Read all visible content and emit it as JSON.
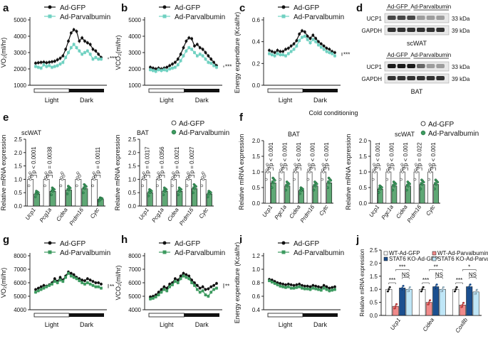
{
  "panel_labels": [
    "a",
    "b",
    "c",
    "d",
    "e",
    "f",
    "g",
    "h",
    "i",
    "j"
  ],
  "legend": {
    "gfp": "Ad-GFP",
    "parv": "Ad-Parvalbumin"
  },
  "light_dark": {
    "light": "Light",
    "dark": "Dark"
  },
  "cold_conditioning": "Cold conditioning",
  "colors": {
    "gfp": "#111111",
    "parv_light": "#6fd1c1",
    "parv_green": "#3c9a5f",
    "parv_green_fill": "#5fa875"
  },
  "western": {
    "top": {
      "tissue": "scWAT",
      "groups": [
        "Ad-GFP",
        "Ad-Parvalbumin"
      ],
      "bands": [
        "UCP1",
        "GAPDH"
      ],
      "kda": [
        "33 kDa",
        "39 kDa"
      ]
    },
    "bottom": {
      "tissue": "BAT",
      "groups": [
        "Ad-GFP",
        "Ad-Parvalbumin"
      ],
      "bands": [
        "UCP1",
        "GAPDH"
      ],
      "kda": [
        "33 kDa",
        "39 kDa"
      ]
    }
  },
  "chart_data": [
    {
      "id": "a",
      "type": "line",
      "ylabel": "VO₂(ml/hr)",
      "yticks": [
        "1000",
        "2000",
        "3000",
        "4000",
        "5000"
      ],
      "ylim": [
        1000,
        5000
      ],
      "significance": "***",
      "series": [
        {
          "name": "Ad-GFP",
          "values": [
            2350,
            2380,
            2400,
            2420,
            2380,
            2410,
            2440,
            2470,
            2560,
            2650,
            2800,
            3200,
            3700,
            4200,
            4400,
            4300,
            3700,
            3900,
            3700,
            3600,
            3500,
            3200,
            3100,
            2900,
            2700
          ]
        },
        {
          "name": "Ad-Parvalbumin",
          "values": [
            2150,
            2100,
            2050,
            2250,
            2150,
            2200,
            2100,
            2150,
            2200,
            2300,
            2400,
            2700,
            3000,
            3300,
            3500,
            3300,
            3100,
            2900,
            3000,
            3100,
            2900,
            2600,
            2700,
            2600,
            2600
          ]
        }
      ]
    },
    {
      "id": "b",
      "type": "line",
      "ylabel": "VCO₂(ml/hr)",
      "yticks": [
        "1000",
        "2000",
        "3000",
        "4000",
        "5000"
      ],
      "ylim": [
        1000,
        5000
      ],
      "significance": "***",
      "series": [
        {
          "name": "Ad-GFP",
          "values": [
            2100,
            2050,
            2000,
            2050,
            2000,
            2050,
            2100,
            2200,
            2300,
            2400,
            2600,
            2900,
            3300,
            3700,
            3900,
            3850,
            3400,
            3500,
            3300,
            3200,
            3000,
            2800,
            2600,
            2400,
            2200
          ]
        },
        {
          "name": "Ad-Parvalbumin",
          "values": [
            1950,
            1900,
            1850,
            1950,
            1900,
            1950,
            1900,
            2000,
            2050,
            2100,
            2250,
            2500,
            2800,
            3100,
            3300,
            3200,
            3000,
            2800,
            2900,
            2800,
            2600,
            2400,
            2350,
            2200,
            2100
          ]
        }
      ]
    },
    {
      "id": "c",
      "type": "line",
      "ylabel": "Energy expenditure (Kcal/hr)",
      "yticks": [
        "0.0",
        "0.2",
        "0.4",
        "0.6"
      ],
      "ylim": [
        0,
        0.6
      ],
      "significance": "***",
      "series": [
        {
          "name": "Ad-GFP",
          "values": [
            0.32,
            0.31,
            0.3,
            0.32,
            0.31,
            0.31,
            0.33,
            0.34,
            0.36,
            0.38,
            0.41,
            0.47,
            0.5,
            0.49,
            0.45,
            0.43,
            0.46,
            0.43,
            0.4,
            0.38,
            0.36,
            0.34,
            0.33,
            0.31,
            0.3
          ]
        },
        {
          "name": "Ad-Parvalbumin",
          "values": [
            0.29,
            0.28,
            0.27,
            0.29,
            0.28,
            0.28,
            0.27,
            0.29,
            0.31,
            0.33,
            0.36,
            0.41,
            0.44,
            0.45,
            0.42,
            0.39,
            0.42,
            0.4,
            0.37,
            0.35,
            0.33,
            0.31,
            0.3,
            0.29,
            0.27
          ]
        }
      ]
    },
    {
      "id": "e",
      "type": "bar",
      "ylabel": "Relative mRNA expression",
      "yticks": [
        "0.0",
        "0.5",
        "1.0",
        "1.5",
        "2.0",
        "2.5"
      ],
      "ylim": [
        0,
        2.5
      ],
      "panels": [
        {
          "title": "scWAT",
          "categories": [
            "Ucp1",
            "Pcg1a",
            "Cidea",
            "Prdm16",
            "Cytc"
          ],
          "series": [
            {
              "name": "Ad-GFP",
              "values": [
                1.0,
                1.0,
                1.0,
                1.0,
                1.0
              ]
            },
            {
              "name": "Ad-Parvalbumin",
              "values": [
                0.45,
                0.55,
                0.6,
                0.65,
                0.25
              ]
            }
          ],
          "pvalues": [
            {
              "cat": 0,
              "text": "p < 0.0001"
            },
            {
              "cat": 1,
              "text": "p = 0.0038"
            },
            {
              "cat": 4,
              "text": "p = 0.0011"
            }
          ]
        },
        {
          "title": "BAT",
          "categories": [
            "Ucp1",
            "Pcg1a",
            "Cidea",
            "Prdm16",
            "Cytc"
          ],
          "series": [
            {
              "name": "Ad-GFP",
              "values": [
                1.0,
                1.0,
                1.0,
                1.0,
                1.0
              ]
            },
            {
              "name": "Ad-Parvalbumin",
              "values": [
                0.5,
                0.55,
                0.55,
                0.65,
                0.45
              ]
            }
          ],
          "pvalues": [
            {
              "cat": 0,
              "text": "p = 0.0317"
            },
            {
              "cat": 1,
              "text": "p = 0.0356"
            },
            {
              "cat": 2,
              "text": "p = 0.0021"
            },
            {
              "cat": 3,
              "text": "p = 0.0027"
            }
          ]
        }
      ]
    },
    {
      "id": "f",
      "type": "bar",
      "ylabel": "Relative mRNA expression",
      "yticks": [
        "0.0",
        "0.5",
        "1.0",
        "1.5",
        "2.0"
      ],
      "ylim": [
        0,
        2.0
      ],
      "panels": [
        {
          "title": "BAT",
          "categories": [
            "Ucp1",
            "Pgc1a",
            "Cidea",
            "Prdm16",
            "Cytc"
          ],
          "series": [
            {
              "name": "Ad-GFP",
              "values": [
                1.0,
                1.0,
                1.0,
                1.0,
                1.0
              ]
            },
            {
              "name": "Ad-Parvalbumin",
              "values": [
                0.65,
                0.55,
                0.4,
                0.55,
                0.65
              ]
            }
          ],
          "pvalues": [
            {
              "cat": 0,
              "text": "p < 0.001"
            },
            {
              "cat": 1,
              "text": "p < 0.001"
            },
            {
              "cat": 2,
              "text": "p < 0.001"
            },
            {
              "cat": 3,
              "text": "p < 0.001"
            },
            {
              "cat": 4,
              "text": "p < 0.001"
            }
          ]
        },
        {
          "title": "scWAT",
          "categories": [
            "Ucp1",
            "Pgc1a",
            "Cidea",
            "Prdm16",
            "Cytc"
          ],
          "series": [
            {
              "name": "Ad-GFP",
              "values": [
                1.0,
                1.0,
                1.0,
                1.0,
                1.0
              ]
            },
            {
              "name": "Ad-Parvalbumin",
              "values": [
                0.45,
                0.55,
                0.55,
                0.6,
                0.6
              ]
            }
          ],
          "pvalues": [
            {
              "cat": 0,
              "text": "p < 0.001"
            },
            {
              "cat": 1,
              "text": "p < 0.001"
            },
            {
              "cat": 2,
              "text": "p < 0.001"
            },
            {
              "cat": 3,
              "text": "p = 0.022"
            },
            {
              "cat": 4,
              "text": "p < 0.001"
            }
          ]
        }
      ]
    },
    {
      "id": "g",
      "type": "line",
      "ylabel": "VO₂(ml/hr)",
      "yticks": [
        "4000",
        "5000",
        "6000",
        "7000",
        "8000"
      ],
      "ylim": [
        4000,
        8000
      ],
      "significance": "**",
      "series": [
        {
          "name": "Ad-GFP",
          "values": [
            5500,
            5600,
            5700,
            5800,
            5750,
            5850,
            6000,
            6300,
            6100,
            6400,
            6200,
            6500,
            6800,
            6700,
            6600,
            6400,
            6300,
            6200,
            6150,
            6300,
            6200,
            6100,
            6000,
            6000,
            5900
          ]
        },
        {
          "name": "Ad-Parvalbumin",
          "values": [
            5300,
            5400,
            5500,
            5600,
            5700,
            5800,
            5900,
            6100,
            6000,
            6200,
            6100,
            6400,
            6700,
            6500,
            6400,
            6300,
            6150,
            6000,
            5900,
            6000,
            5900,
            5800,
            5700,
            5700,
            5600
          ]
        }
      ]
    },
    {
      "id": "h",
      "type": "line",
      "ylabel": "VCO₂(ml/hr)",
      "yticks": [
        "4000",
        "5000",
        "6000",
        "7000",
        "8000"
      ],
      "ylim": [
        4000,
        8000
      ],
      "significance": "**",
      "series": [
        {
          "name": "Ad-GFP",
          "values": [
            4950,
            5000,
            5100,
            5300,
            5500,
            5700,
            5600,
            5900,
            6000,
            6300,
            6200,
            6500,
            6700,
            6600,
            6500,
            6200,
            6000,
            5800,
            5600,
            5700,
            5500,
            5550,
            5700,
            5800,
            5950
          ]
        },
        {
          "name": "Ad-Parvalbumin",
          "values": [
            4800,
            4850,
            4950,
            5100,
            5300,
            5500,
            5400,
            5700,
            5850,
            6100,
            6000,
            6300,
            6500,
            6400,
            6300,
            6000,
            5800,
            5500,
            5300,
            5400,
            5100,
            5000,
            5300,
            5500,
            5600
          ]
        }
      ]
    },
    {
      "id": "i",
      "type": "line",
      "ylabel": "Energy expenditure (Kcal/hr)",
      "yticks": [
        "0.4",
        "0.6",
        "0.8",
        "1.0",
        "1.2"
      ],
      "ylim": [
        0.4,
        1.2
      ],
      "series": [
        {
          "name": "Ad-GFP",
          "values": [
            0.85,
            0.84,
            0.82,
            0.8,
            0.79,
            0.78,
            0.77,
            0.78,
            0.77,
            0.76,
            0.77,
            0.78,
            0.76,
            0.75,
            0.75,
            0.74,
            0.76,
            0.75,
            0.74,
            0.73,
            0.76,
            0.74,
            0.72,
            0.73,
            0.74
          ]
        },
        {
          "name": "Ad-Parvalbumin",
          "values": [
            0.83,
            0.81,
            0.79,
            0.77,
            0.75,
            0.74,
            0.73,
            0.74,
            0.72,
            0.72,
            0.73,
            0.74,
            0.72,
            0.71,
            0.71,
            0.7,
            0.72,
            0.71,
            0.7,
            0.69,
            0.72,
            0.7,
            0.68,
            0.69,
            0.7
          ]
        }
      ]
    },
    {
      "id": "j",
      "type": "bar",
      "ylabel": "Relative mRNA expression",
      "yticks": [
        "0.0",
        "0.5",
        "1.0",
        "1.5",
        "2.0",
        "2.5"
      ],
      "ylim": [
        0,
        2.5
      ],
      "categories": [
        "Ucp1",
        "Cidea",
        "Cox8b"
      ],
      "legend": [
        "WT-Ad-GFP",
        "WT-Ad-Parvalbumin",
        "STAT6 KO-Ad-GFP",
        "STAT6 KO-Ad-Parvalbumin"
      ],
      "series": [
        {
          "name": "WT-Ad-GFP",
          "values": [
            1.0,
            1.0,
            1.0
          ]
        },
        {
          "name": "WT-Ad-Parvalbumin",
          "values": [
            0.35,
            0.5,
            0.4
          ]
        },
        {
          "name": "STAT6 KO-Ad-GFP",
          "values": [
            1.05,
            1.1,
            1.1
          ]
        },
        {
          "name": "STAT6 KO-Ad-Parvalbumin",
          "values": [
            1.0,
            1.0,
            0.9
          ]
        }
      ],
      "significance": [
        {
          "cat": 0,
          "items": [
            "***",
            "NS",
            "***"
          ]
        },
        {
          "cat": 1,
          "items": [
            "***",
            "NS",
            "**"
          ]
        },
        {
          "cat": 2,
          "items": [
            "***",
            "NS",
            "*"
          ]
        }
      ]
    }
  ]
}
